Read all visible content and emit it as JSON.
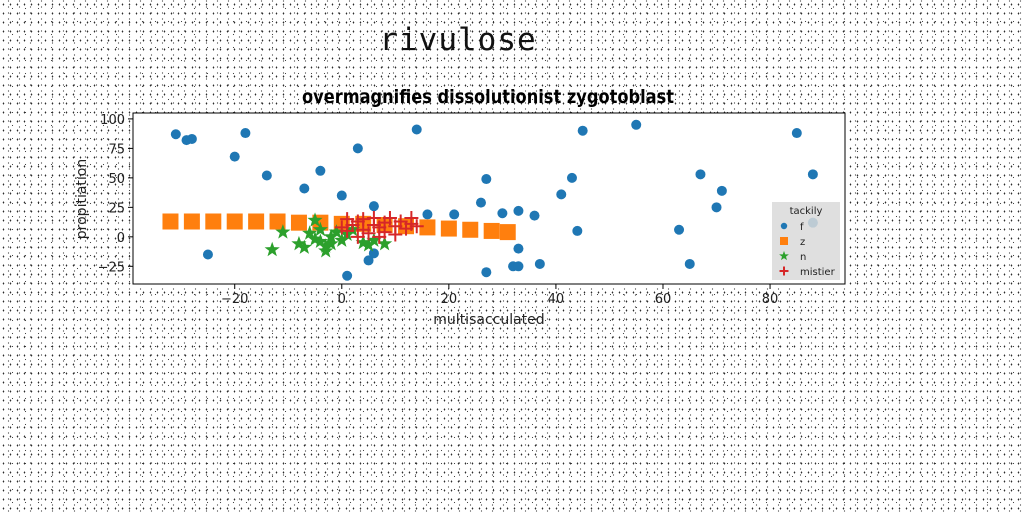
{
  "page_title": "rivulose",
  "chart_data": {
    "type": "scatter",
    "title": "overmagnifies dissolutionist zygotoblast",
    "xlabel": "multisacculated",
    "ylabel": "propitiation",
    "xlim": [
      -39,
      94
    ],
    "ylim": [
      -40,
      105
    ],
    "xticks": [
      -20,
      0,
      20,
      40,
      60,
      80
    ],
    "yticks": [
      -25,
      0,
      25,
      50,
      75,
      100
    ],
    "grid": false,
    "legend": {
      "title": "tackily",
      "placement": "lower-right"
    },
    "series": [
      {
        "name": "f",
        "marker": "circle",
        "color": "#1f77b4",
        "points": [
          [
            -31,
            87
          ],
          [
            -29,
            82
          ],
          [
            -28,
            83
          ],
          [
            -18,
            88
          ],
          [
            -20,
            68
          ],
          [
            -14,
            52
          ],
          [
            -25,
            -15
          ],
          [
            -7,
            41
          ],
          [
            -4,
            56
          ],
          [
            0,
            35
          ],
          [
            3,
            75
          ],
          [
            6,
            26
          ],
          [
            1,
            -33
          ],
          [
            5,
            -20
          ],
          [
            6,
            -14
          ],
          [
            14,
            91
          ],
          [
            16,
            19
          ],
          [
            21,
            19
          ],
          [
            27,
            49
          ],
          [
            26,
            29
          ],
          [
            27,
            -30
          ],
          [
            30,
            20
          ],
          [
            33,
            22
          ],
          [
            36,
            18
          ],
          [
            33,
            -10
          ],
          [
            32,
            -25
          ],
          [
            33,
            -25
          ],
          [
            37,
            -23
          ],
          [
            41,
            36
          ],
          [
            43,
            50
          ],
          [
            44,
            5
          ],
          [
            45,
            90
          ],
          [
            55,
            95
          ],
          [
            63,
            6
          ],
          [
            65,
            -23
          ],
          [
            67,
            53
          ],
          [
            70,
            25
          ],
          [
            71,
            39
          ],
          [
            85,
            88
          ],
          [
            88,
            53
          ],
          [
            88,
            12
          ]
        ]
      },
      {
        "name": "z",
        "marker": "square",
        "color": "#ff7f0e",
        "points": [
          [
            -32,
            13
          ],
          [
            -28,
            13
          ],
          [
            -24,
            13
          ],
          [
            -20,
            13
          ],
          [
            -16,
            13
          ],
          [
            -12,
            13
          ],
          [
            -8,
            12
          ],
          [
            -4,
            12
          ],
          [
            0,
            11
          ],
          [
            4,
            11
          ],
          [
            8,
            10
          ],
          [
            12,
            9
          ],
          [
            16,
            8
          ],
          [
            20,
            7
          ],
          [
            24,
            6
          ],
          [
            28,
            5
          ],
          [
            31,
            4
          ]
        ]
      },
      {
        "name": "n",
        "marker": "star",
        "color": "#2ca02c",
        "points": [
          [
            -13,
            -11
          ],
          [
            -11,
            4
          ],
          [
            -8,
            -6
          ],
          [
            -7,
            -9
          ],
          [
            -6,
            3
          ],
          [
            -5,
            14
          ],
          [
            -5,
            -2
          ],
          [
            -4,
            6
          ],
          [
            -3,
            -8
          ],
          [
            -3,
            -12
          ],
          [
            -2,
            0
          ],
          [
            -1,
            4
          ],
          [
            0,
            -3
          ],
          [
            1,
            2
          ],
          [
            2,
            6
          ],
          [
            -4,
            -4
          ],
          [
            -2,
            -6
          ],
          [
            4,
            -5
          ],
          [
            5,
            -7
          ],
          [
            6,
            -3
          ],
          [
            8,
            -6
          ]
        ]
      },
      {
        "name": "mistier",
        "marker": "plus",
        "color": "#d62728",
        "points": [
          [
            0,
            8
          ],
          [
            1,
            5
          ],
          [
            1,
            15
          ],
          [
            2,
            10
          ],
          [
            3,
            13
          ],
          [
            3,
            0
          ],
          [
            4,
            6
          ],
          [
            4,
            15
          ],
          [
            5,
            3
          ],
          [
            6,
            10
          ],
          [
            6,
            16
          ],
          [
            7,
            0
          ],
          [
            7,
            8
          ],
          [
            8,
            12
          ],
          [
            8,
            4
          ],
          [
            9,
            16
          ],
          [
            10,
            9
          ],
          [
            10,
            2
          ],
          [
            11,
            13
          ],
          [
            12,
            7
          ],
          [
            13,
            11
          ],
          [
            13,
            16
          ],
          [
            14,
            9
          ]
        ]
      }
    ]
  }
}
